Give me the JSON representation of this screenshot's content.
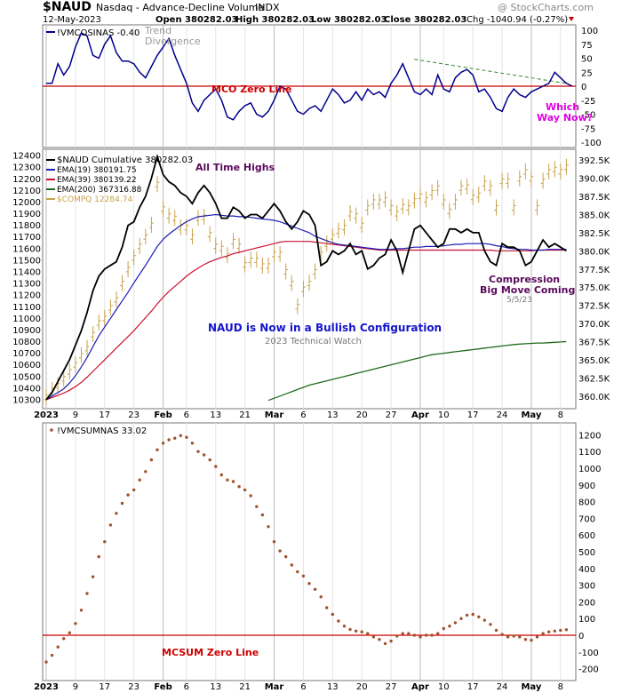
{
  "header": {
    "symbol": "$NAUD",
    "name": "Nasdaq - Advance-Decline Volume",
    "exchange": "INDX",
    "watermark": "@ StockCharts.com",
    "date": "12-May-2023",
    "open": "Open 380282.03",
    "high": "High 380282.03",
    "low": "Low 380282.03",
    "close": "Close 380282.03",
    "chg": "Chg -1040.94 (-0.27%)"
  },
  "colors": {
    "mco": "#00008b",
    "naud": "#000000",
    "ema19": "#1c1cb5",
    "ema39": "#c8102e",
    "ema200": "#1e6b1e",
    "compq": "#c8a24a",
    "mcsum": "#a0522d",
    "zero": "#cc0000",
    "annotation_purple": "#5a0a5a",
    "annotation_magenta": "#e000e0",
    "annotation_blue": "#1515cc",
    "trend_line": "#2e8b2e"
  },
  "chart_data": [
    {
      "type": "line",
      "panel": "mco",
      "legend": "!VMCOSINAS -0.40",
      "ylim": [
        -100,
        100
      ],
      "yticks": [
        "100",
        "75",
        "50",
        "25",
        "0",
        "-25",
        "-50",
        "-75",
        "-100"
      ],
      "annotations": {
        "zero_line": "MCO Zero Line",
        "trend": "Trend",
        "divergence": "Divergence",
        "which": "Which",
        "way_now": "Way Now?"
      },
      "series": [
        {
          "name": "!VMCOSINAS",
          "values": [
            5,
            5,
            40,
            20,
            35,
            70,
            95,
            90,
            55,
            50,
            75,
            90,
            60,
            45,
            45,
            40,
            25,
            15,
            35,
            55,
            70,
            85,
            55,
            30,
            5,
            -30,
            -45,
            -25,
            -15,
            -5,
            -25,
            -55,
            -60,
            -45,
            -35,
            -30,
            -50,
            -55,
            -45,
            -25,
            0,
            -5,
            -25,
            -45,
            -50,
            -40,
            -35,
            -45,
            -25,
            -5,
            -15,
            -30,
            -25,
            -10,
            -25,
            -5,
            -15,
            -10,
            -20,
            5,
            20,
            40,
            15,
            -10,
            -15,
            -5,
            -15,
            20,
            -5,
            -10,
            15,
            25,
            30,
            20,
            -10,
            -5,
            -20,
            -40,
            -45,
            -20,
            -5,
            -15,
            -20,
            -10,
            -5,
            0,
            5,
            25,
            15,
            5,
            0
          ]
        }
      ]
    },
    {
      "type": "line",
      "panel": "naud",
      "legend": {
        "naud": "$NAUD Cumulative 380282.03",
        "ema19": "EMA(19) 380191.75",
        "ema39": "EMA(39) 380139.22",
        "ema200": "EMA(200) 367316.88",
        "compq": "$COMPQ 12284.74"
      },
      "ylim_left": [
        10250,
        12420
      ],
      "yticks_left": [
        "12400",
        "12300",
        "12200",
        "12100",
        "12000",
        "11900",
        "11800",
        "11700",
        "11600",
        "11500",
        "11400",
        "11300",
        "11200",
        "11100",
        "11000",
        "10900",
        "10800",
        "10700",
        "10600",
        "10500",
        "10400",
        "10300"
      ],
      "ylim_right": [
        358750,
        393500
      ],
      "yticks_right": [
        "392.5K",
        "390.0K",
        "387.5K",
        "385.0K",
        "382.5K",
        "380.0K",
        "377.5K",
        "375.0K",
        "372.5K",
        "370.0K",
        "367.5K",
        "365.0K",
        "362.5K",
        "360.0K"
      ],
      "annotations": {
        "all_time_highs": "All Time Highs",
        "bullish": "NAUD is Now in a Bullish Configuration",
        "watch": "2023 Technical Watch",
        "compression": "Compression",
        "big_move": "Big Move Coming",
        "date": "5/5/23"
      },
      "series": [
        {
          "name": "$NAUD",
          "values": [
            359500,
            360500,
            362000,
            363500,
            365000,
            367000,
            369000,
            371500,
            374500,
            376500,
            377500,
            378000,
            378500,
            380500,
            383500,
            384000,
            386000,
            387500,
            390000,
            393000,
            390500,
            389500,
            389000,
            388000,
            387500,
            386500,
            388000,
            389000,
            388000,
            386500,
            384500,
            384500,
            386000,
            385500,
            384500,
            385000,
            385000,
            384500,
            385500,
            386500,
            385500,
            384000,
            383000,
            384000,
            385500,
            385000,
            383500,
            378000,
            378500,
            380000,
            379500,
            380000,
            381000,
            379500,
            380000,
            377500,
            378000,
            379000,
            379500,
            381500,
            380000,
            377000,
            380000,
            383000,
            383500,
            382500,
            381500,
            380500,
            381000,
            383000,
            383000,
            382500,
            383000,
            382500,
            382500,
            380000,
            378500,
            378000,
            381000,
            380500,
            380500,
            380000,
            378000,
            378500,
            380000,
            381500,
            380500,
            381000,
            380500,
            380000
          ]
        },
        {
          "name": "EMA(19)",
          "values": [
            359500,
            360000,
            360500,
            361000,
            361800,
            362800,
            364000,
            365300,
            366800,
            368300,
            369500,
            370700,
            371900,
            373100,
            374300,
            375600,
            376800,
            378000,
            379300,
            380600,
            381600,
            382300,
            382900,
            383500,
            384000,
            384400,
            384700,
            384800,
            384900,
            385000,
            384900,
            384800,
            384800,
            384700,
            384700,
            384600,
            384500,
            384400,
            384300,
            384200,
            384000,
            383700,
            383400,
            383100,
            382800,
            382500,
            382000,
            381700,
            381400,
            381100,
            380900,
            380800,
            380700,
            380600,
            380500,
            380400,
            380300,
            380200,
            380200,
            380200,
            380300,
            380300,
            380400,
            380500,
            380500,
            380600,
            380600,
            380600,
            380700,
            380800,
            380900,
            380900,
            381000,
            381000,
            381000,
            381000,
            380900,
            380700,
            380600,
            380400,
            380300,
            380200,
            380200,
            380100,
            380100,
            380100,
            380200,
            380200,
            380200,
            380200
          ]
        },
        {
          "name": "EMA(39)",
          "values": [
            359500,
            359800,
            360100,
            360400,
            360800,
            361300,
            361900,
            362600,
            363400,
            364200,
            365000,
            365800,
            366600,
            367400,
            368200,
            369000,
            369900,
            370800,
            371700,
            372700,
            373600,
            374400,
            375100,
            375800,
            376500,
            377100,
            377600,
            378100,
            378500,
            378800,
            379100,
            379300,
            379600,
            379800,
            380000,
            380200,
            380400,
            380600,
            380800,
            381000,
            381200,
            381300,
            381300,
            381300,
            381300,
            381300,
            381200,
            381100,
            381000,
            380900,
            380800,
            380700,
            380600,
            380500,
            380400,
            380300,
            380200,
            380100,
            380100,
            380100,
            380100,
            380100,
            380100,
            380100,
            380100,
            380100,
            380100,
            380100,
            380100,
            380100,
            380100,
            380100,
            380100,
            380100,
            380100,
            380100,
            380100,
            380000,
            380000,
            380000,
            380000,
            380000,
            380000,
            380000,
            380100,
            380100,
            380100,
            380100,
            380100,
            380100
          ]
        },
        {
          "name": "EMA(200)",
          "values": [
            null,
            null,
            null,
            null,
            null,
            null,
            null,
            null,
            null,
            null,
            null,
            null,
            null,
            null,
            null,
            null,
            null,
            null,
            null,
            null,
            null,
            null,
            null,
            null,
            null,
            null,
            null,
            null,
            null,
            null,
            null,
            null,
            null,
            null,
            null,
            null,
            null,
            null,
            359400,
            359700,
            360000,
            360300,
            360600,
            360900,
            361200,
            361500,
            361700,
            361900,
            362100,
            362300,
            362500,
            362700,
            362900,
            363100,
            363300,
            363500,
            363700,
            363900,
            364100,
            364300,
            364500,
            364700,
            364900,
            365100,
            365300,
            365500,
            365700,
            365800,
            365900,
            366000,
            366100,
            366200,
            366300,
            366400,
            366500,
            366600,
            366700,
            366800,
            366900,
            367000,
            367100,
            367150,
            367200,
            367250,
            367300,
            367300,
            367350,
            367400,
            367450,
            367500
          ]
        },
        {
          "name": "$COMPQ",
          "values": [
            10320,
            10380,
            10420,
            10480,
            10540,
            10600,
            10680,
            10740,
            10860,
            10960,
            11000,
            11090,
            11160,
            11300,
            11420,
            11520,
            11620,
            11700,
            11800,
            12150,
            11940,
            11880,
            11860,
            11780,
            11780,
            11700,
            11860,
            11870,
            11720,
            11620,
            11600,
            11540,
            11660,
            11620,
            11460,
            11500,
            11500,
            11450,
            11450,
            11550,
            11550,
            11400,
            11300,
            11100,
            11250,
            11300,
            11400,
            11550,
            11640,
            11700,
            11750,
            11780,
            11900,
            11880,
            11800,
            11950,
            12000,
            12000,
            12020,
            11950,
            11900,
            11960,
            11950,
            12010,
            12050,
            12020,
            12080,
            12120,
            12000,
            11920,
            12000,
            12120,
            12130,
            12040,
            12060,
            12160,
            12120,
            11950,
            12180,
            12180,
            11950,
            12200,
            12260,
            12200,
            11950,
            12180,
            12260,
            12280,
            12260,
            12300
          ]
        }
      ]
    },
    {
      "type": "scatter",
      "panel": "mcsum",
      "legend": "!VMCSUMNAS 33.02",
      "ylim": [
        -250,
        1250
      ],
      "yticks": [
        "1200",
        "1100",
        "1000",
        "900",
        "800",
        "700",
        "600",
        "500",
        "400",
        "300",
        "200",
        "100",
        "0",
        "-100",
        "-200"
      ],
      "annotations": {
        "zero_line": "MCSUM Zero Line"
      },
      "series": [
        {
          "name": "!VMCSUMNAS",
          "values": [
            -160,
            -120,
            -70,
            -20,
            15,
            70,
            150,
            250,
            350,
            470,
            560,
            660,
            730,
            790,
            840,
            870,
            930,
            980,
            1050,
            1110,
            1150,
            1170,
            1180,
            1195,
            1185,
            1150,
            1100,
            1080,
            1050,
            1010,
            960,
            930,
            920,
            890,
            870,
            835,
            770,
            720,
            650,
            560,
            505,
            470,
            420,
            380,
            355,
            310,
            275,
            230,
            165,
            125,
            85,
            55,
            35,
            25,
            20,
            10,
            -10,
            -25,
            -50,
            -35,
            -5,
            10,
            10,
            0,
            -10,
            0,
            0,
            10,
            40,
            55,
            75,
            100,
            120,
            125,
            110,
            90,
            65,
            30,
            5,
            -10,
            -5,
            -10,
            -25,
            -30,
            -10,
            10,
            20,
            25,
            30,
            33
          ]
        }
      ]
    }
  ],
  "xaxis": {
    "labels": [
      "2023",
      "9",
      "17",
      "23",
      "Feb",
      "6",
      "13",
      "21",
      "Mar",
      "6",
      "13",
      "20",
      "27",
      "Apr",
      "10",
      "17",
      "24",
      "May",
      "8"
    ]
  }
}
